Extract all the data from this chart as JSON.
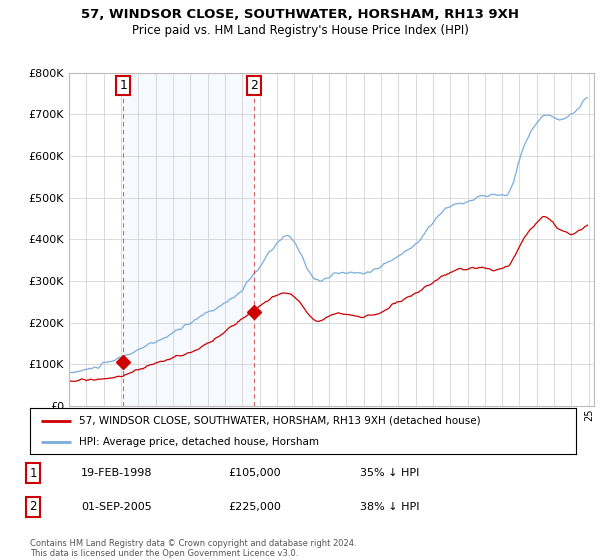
{
  "title": "57, WINDSOR CLOSE, SOUTHWATER, HORSHAM, RH13 9XH",
  "subtitle": "Price paid vs. HM Land Registry's House Price Index (HPI)",
  "legend_line1": "57, WINDSOR CLOSE, SOUTHWATER, HORSHAM, RH13 9XH (detached house)",
  "legend_line2": "HPI: Average price, detached house, Horsham",
  "annotation1_date": "19-FEB-1998",
  "annotation1_price": "£105,000",
  "annotation1_hpi": "35% ↓ HPI",
  "annotation2_date": "01-SEP-2005",
  "annotation2_price": "£225,000",
  "annotation2_hpi": "38% ↓ HPI",
  "footer": "Contains HM Land Registry data © Crown copyright and database right 2024.\nThis data is licensed under the Open Government Licence v3.0.",
  "hpi_color": "#7aaddc",
  "price_color": "#cc0000",
  "shade_color": "#ddeeff",
  "annotation_box_color": "#cc0000",
  "ylim": [
    0,
    800000
  ],
  "yticks": [
    0,
    100000,
    200000,
    300000,
    400000,
    500000,
    600000,
    700000,
    800000
  ],
  "ytick_labels": [
    "£0",
    "£100K",
    "£200K",
    "£300K",
    "£400K",
    "£500K",
    "£600K",
    "£700K",
    "£800K"
  ],
  "sale1_x": 1998.13,
  "sale1_y": 105000,
  "sale2_x": 2005.67,
  "sale2_y": 225000,
  "xmin": 1995.0,
  "xmax": 2025.3
}
